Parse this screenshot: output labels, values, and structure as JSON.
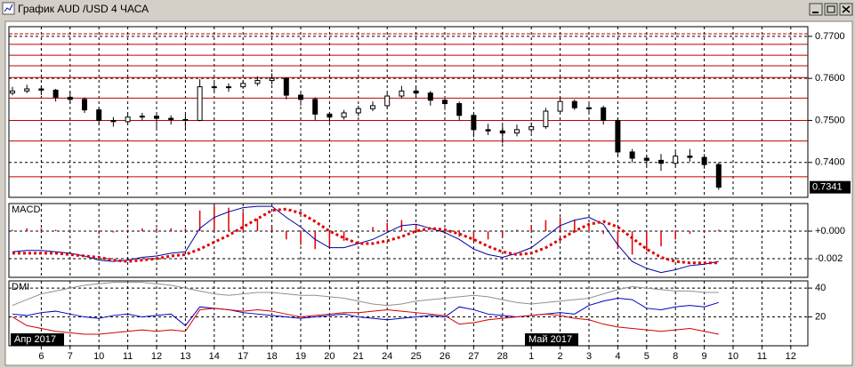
{
  "window_title": "График AUD /USD  4 ЧАСА",
  "chart_data": [
    {
      "type": "candlestick",
      "ohlc": [
        [
          0.7565,
          0.758,
          0.756,
          0.757
        ],
        [
          0.757,
          0.7585,
          0.7565,
          0.7575
        ],
        [
          0.7575,
          0.7582,
          0.756,
          0.7572
        ],
        [
          0.7572,
          0.7575,
          0.7545,
          0.7555
        ],
        [
          0.7555,
          0.7568,
          0.754,
          0.755
        ],
        [
          0.755,
          0.7555,
          0.7518,
          0.7525
        ],
        [
          0.7525,
          0.753,
          0.749,
          0.75
        ],
        [
          0.75,
          0.7508,
          0.7485,
          0.7497
        ],
        [
          0.7497,
          0.7515,
          0.7492,
          0.7508
        ],
        [
          0.7508,
          0.7518,
          0.75,
          0.751
        ],
        [
          0.751,
          0.7515,
          0.7478,
          0.7505
        ],
        [
          0.7505,
          0.7512,
          0.749,
          0.7502
        ],
        [
          0.7502,
          0.7515,
          0.748,
          0.75
        ],
        [
          0.75,
          0.7598,
          0.7498,
          0.758
        ],
        [
          0.758,
          0.759,
          0.757,
          0.7578
        ],
        [
          0.7578,
          0.7588,
          0.7568,
          0.758
        ],
        [
          0.758,
          0.7595,
          0.7575,
          0.7588
        ],
        [
          0.7588,
          0.7605,
          0.7582,
          0.7595
        ],
        [
          0.7595,
          0.7612,
          0.7585,
          0.76
        ],
        [
          0.76,
          0.7602,
          0.755,
          0.756
        ],
        [
          0.756,
          0.7565,
          0.7535,
          0.755
        ],
        [
          0.755,
          0.7555,
          0.75,
          0.7515
        ],
        [
          0.7515,
          0.752,
          0.7495,
          0.7508
        ],
        [
          0.7508,
          0.7525,
          0.7502,
          0.7518
        ],
        [
          0.7518,
          0.7535,
          0.751,
          0.7528
        ],
        [
          0.7528,
          0.7545,
          0.7522,
          0.7535
        ],
        [
          0.7535,
          0.7565,
          0.753,
          0.7558
        ],
        [
          0.7558,
          0.7582,
          0.7552,
          0.757
        ],
        [
          0.757,
          0.7578,
          0.7555,
          0.7565
        ],
        [
          0.7565,
          0.757,
          0.7535,
          0.7548
        ],
        [
          0.7548,
          0.7552,
          0.7525,
          0.754
        ],
        [
          0.754,
          0.7545,
          0.75,
          0.7512
        ],
        [
          0.7512,
          0.7518,
          0.746,
          0.7478
        ],
        [
          0.7478,
          0.7492,
          0.7465,
          0.7475
        ],
        [
          0.7475,
          0.7488,
          0.7445,
          0.747
        ],
        [
          0.747,
          0.749,
          0.7462,
          0.7478
        ],
        [
          0.7478,
          0.7495,
          0.747,
          0.7485
        ],
        [
          0.7485,
          0.753,
          0.748,
          0.7522
        ],
        [
          0.7522,
          0.7555,
          0.7518,
          0.7545
        ],
        [
          0.7545,
          0.755,
          0.7525,
          0.753
        ],
        [
          0.753,
          0.754,
          0.752,
          0.753
        ],
        [
          0.753,
          0.7535,
          0.749,
          0.75
        ],
        [
          0.75,
          0.7505,
          0.7415,
          0.7425
        ],
        [
          0.7425,
          0.7432,
          0.74,
          0.741
        ],
        [
          0.741,
          0.7418,
          0.7392,
          0.7405
        ],
        [
          0.7405,
          0.742,
          0.738,
          0.7398
        ],
        [
          0.7398,
          0.7425,
          0.7392,
          0.7415
        ],
        [
          0.7415,
          0.7432,
          0.7402,
          0.7412
        ],
        [
          0.7412,
          0.742,
          0.7385,
          0.7395
        ],
        [
          0.7395,
          0.74,
          0.7335,
          0.7341
        ]
      ],
      "ylim": [
        0.7317,
        0.7723
      ],
      "yticks": [
        {
          "value": 0.77,
          "label": "0.7700"
        },
        {
          "value": 0.76,
          "label": "0.7600"
        },
        {
          "value": 0.75,
          "label": "0.7500"
        },
        {
          "value": 0.74,
          "label": "0.7400"
        }
      ],
      "levels": [
        0.7706,
        0.7681,
        0.7655,
        0.763,
        0.7602,
        0.7553,
        0.75,
        0.7451,
        0.7366
      ],
      "level_color": "#c00000",
      "color": "#000000",
      "grid": true
    },
    {
      "type": "macd",
      "title": "MACD",
      "series": [
        {
          "color": "#0000a0",
          "style": "line",
          "values": [
            -0.0015,
            -0.0014,
            -0.0014,
            -0.0015,
            -0.0016,
            -0.0018,
            -0.0021,
            -0.0022,
            -0.0021,
            -0.0019,
            -0.0018,
            -0.0016,
            -0.0015,
            0.0002,
            0.001,
            0.0014,
            0.0017,
            0.0018,
            0.0018,
            0.001,
            0.0003,
            -0.0006,
            -0.0012,
            -0.0012,
            -0.0009,
            -0.0006,
            -0.0001,
            0.0004,
            0.0005,
            0.0002,
            -0.0001,
            -0.0006,
            -0.0013,
            -0.0017,
            -0.0019,
            -0.0016,
            -0.0012,
            -0.0004,
            0.0004,
            0.0008,
            0.001,
            0.0005,
            -0.001,
            -0.0022,
            -0.0027,
            -0.003,
            -0.0028,
            -0.0025,
            -0.0024,
            -0.0022
          ]
        },
        {
          "color": "#e00000",
          "style": "dots",
          "values": [
            -0.0016,
            -0.0016,
            -0.0016,
            -0.0016,
            -0.0017,
            -0.0018,
            -0.0019,
            -0.0021,
            -0.0022,
            -0.0021,
            -0.002,
            -0.0018,
            -0.0017,
            -0.0013,
            -0.0008,
            -0.0003,
            0.0003,
            0.0009,
            0.0015,
            0.0016,
            0.0013,
            0.0007,
            0,
            -0.0005,
            -0.0009,
            -0.0009,
            -0.0007,
            -0.0004,
            0,
            0.0002,
            0.0001,
            -0.0002,
            -0.0006,
            -0.0011,
            -0.0015,
            -0.0017,
            -0.0016,
            -0.0012,
            -0.0006,
            0,
            0.0005,
            0.0007,
            0.0003,
            -0.0005,
            -0.0013,
            -0.0019,
            -0.0022,
            -0.0023,
            -0.0023,
            -0.0023
          ]
        },
        {
          "color": "#e00000",
          "style": "histogram",
          "values": [
            0.0001,
            0.0002,
            0.0002,
            0.0001,
            0.0001,
            0,
            -0.0002,
            -0.0001,
            0.0001,
            0.0002,
            0.0002,
            0.0002,
            0.0002,
            0.0015,
            0.0018,
            0.0017,
            0.0014,
            0.0009,
            0.0003,
            -0.0006,
            -0.001,
            -0.0013,
            -0.0012,
            -0.0007,
            0,
            0.0003,
            0.0006,
            0.0008,
            0.0005,
            0,
            -0.0002,
            -0.0004,
            -0.0007,
            -0.0006,
            -0.0004,
            0.0001,
            0.0004,
            0.0008,
            0.001,
            0.0008,
            0.0005,
            -0.0002,
            -0.0013,
            -0.0017,
            -0.0014,
            -0.0011,
            -0.0006,
            -0.0002,
            -0.0001,
            0.0001
          ]
        }
      ],
      "ylim": [
        -0.00335,
        0.002
      ],
      "yticks": [
        {
          "value": 0,
          "label": "+0.000"
        },
        {
          "value": -0.002,
          "label": "-0.002"
        }
      ],
      "grid": true
    },
    {
      "type": "line",
      "title": "DMI",
      "series": [
        {
          "color": "#909090",
          "values": [
            28,
            32,
            36,
            38,
            40,
            42,
            43,
            44,
            44,
            44,
            43,
            42,
            40,
            38,
            36,
            35,
            36,
            37,
            37,
            36,
            35,
            35,
            34,
            33,
            31,
            29,
            28,
            29,
            31,
            32,
            33,
            34,
            35,
            34,
            32,
            30,
            29,
            30,
            31,
            32,
            33,
            36,
            39,
            41,
            40,
            39,
            38,
            38,
            37,
            37
          ]
        },
        {
          "color": "#0000c0",
          "values": [
            22,
            21,
            23,
            24,
            22,
            20,
            19,
            21,
            22,
            20,
            21,
            22,
            14,
            27,
            26,
            25,
            23,
            22,
            21,
            20,
            19,
            20,
            21,
            22,
            20,
            19,
            18,
            19,
            20,
            21,
            20,
            27,
            25,
            22,
            21,
            20,
            21,
            22,
            23,
            22,
            28,
            31,
            33,
            32,
            26,
            25,
            27,
            28,
            27,
            30
          ]
        },
        {
          "color": "#d00000",
          "values": [
            20,
            14,
            12,
            10,
            9,
            8,
            8,
            9,
            10,
            11,
            10,
            11,
            10,
            25,
            26,
            25,
            24,
            25,
            24,
            22,
            20,
            21,
            22,
            23,
            23,
            24,
            25,
            24,
            23,
            22,
            21,
            15,
            16,
            18,
            19,
            20,
            21,
            22,
            21,
            19,
            18,
            15,
            13,
            12,
            11,
            10,
            11,
            12,
            10,
            8
          ]
        }
      ],
      "ylim": [
        0,
        45
      ],
      "yticks": [
        20,
        40
      ],
      "grid": true,
      "day_labels": [
        "6",
        "7",
        "10",
        "11",
        "12",
        "13",
        "14",
        "17",
        "18",
        "19",
        "20",
        "21",
        "24",
        "25",
        "26",
        "27",
        "28",
        "1",
        "2",
        "3",
        "4",
        "5",
        "8",
        "9",
        "10",
        "11",
        "12"
      ],
      "month_labels": [
        "Апр 2017",
        "Май 2017"
      ]
    }
  ]
}
